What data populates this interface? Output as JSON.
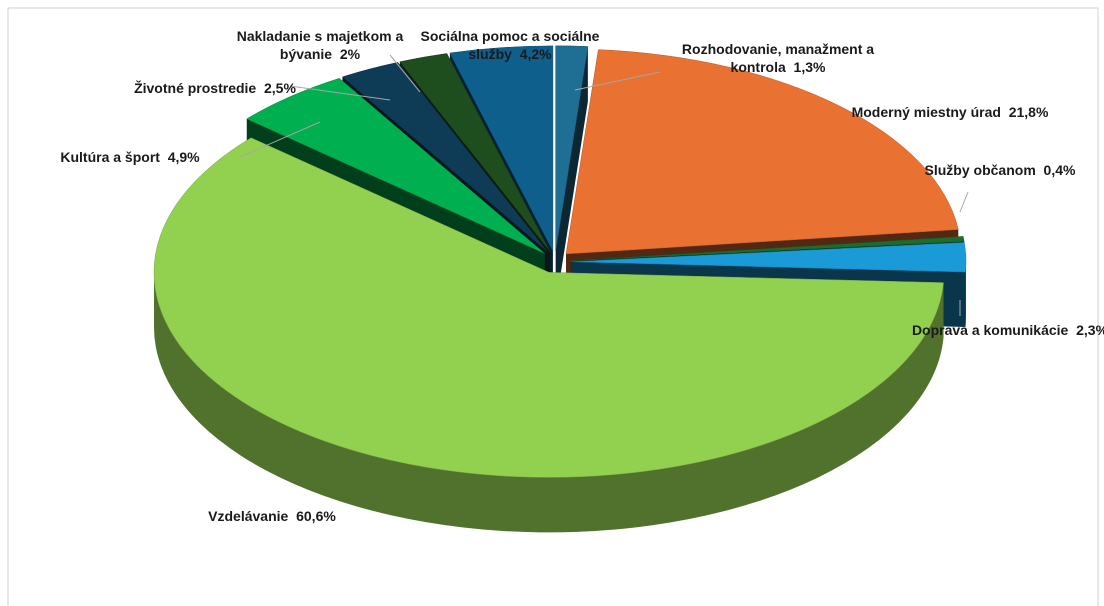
{
  "chart_data": {
    "type": "pie",
    "categories": [
      "Rozhodovanie, manažment a kontrola",
      "Moderný miestny úrad",
      "Služby občanom",
      "Doprava a komunikácie",
      "Vzdelávanie",
      "Kultúra a šport",
      "Životné prostredie",
      "Nakladanie s majetkom a bývanie",
      "Sociálna pomoc a sociálne služby"
    ],
    "values": [
      1.3,
      21.8,
      0.4,
      2.3,
      60.6,
      4.9,
      2.5,
      2,
      4.2
    ],
    "value_labels": [
      "1,3%",
      "21,8%",
      "0,4%",
      "2,3%",
      "60,6%",
      "4,9%",
      "2,5%",
      "2%",
      "4,2%"
    ],
    "colors": [
      "#1f6e94",
      "#e97132",
      "#1e6b2e",
      "#1a9bd7",
      "#92d050",
      "#00b050",
      "#0e3b55",
      "#1e4d1e",
      "#0f5f8c"
    ]
  }
}
